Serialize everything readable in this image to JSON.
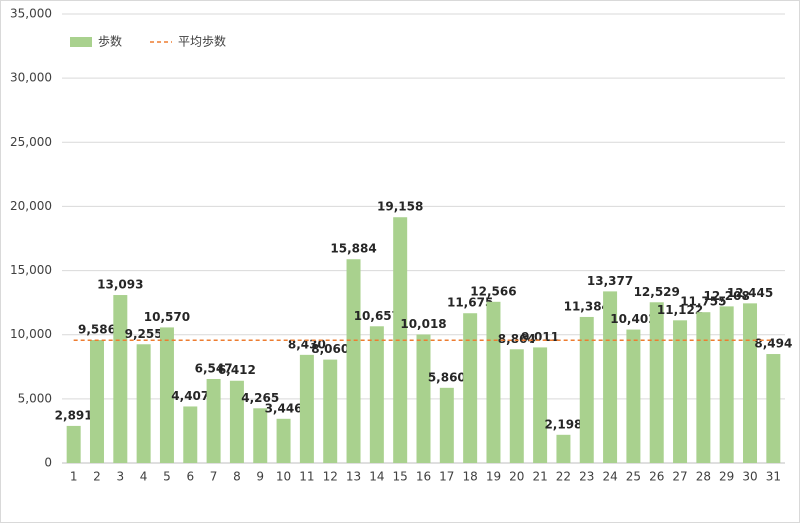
{
  "chart_data": {
    "type": "bar",
    "categories": [
      "1",
      "2",
      "3",
      "4",
      "5",
      "6",
      "7",
      "8",
      "9",
      "10",
      "11",
      "12",
      "13",
      "14",
      "15",
      "16",
      "17",
      "18",
      "19",
      "20",
      "21",
      "22",
      "23",
      "24",
      "25",
      "26",
      "27",
      "28",
      "29",
      "30",
      "31"
    ],
    "series": [
      {
        "name": "歩数",
        "color": "#a9d18e",
        "values": [
          2891,
          9586,
          13093,
          9255,
          10570,
          4407,
          6547,
          6412,
          4265,
          3446,
          8430,
          8060,
          15884,
          10657,
          19158,
          10018,
          5860,
          11675,
          12566,
          8864,
          9011,
          2198,
          11384,
          13377,
          10402,
          12529,
          11122,
          11755,
          12208,
          12445,
          8494
        ],
        "value_labels": [
          "2,891",
          "9,586",
          "13,093",
          "9,255",
          "10,570",
          "4,407",
          "6,547",
          "6,412",
          "4,265",
          "3,446",
          "8,430",
          "8,060",
          "15,884",
          "10,657",
          "19,158",
          "10,018",
          "5,860",
          "11,675",
          "12,566",
          "8,864",
          "9,011",
          "2,198",
          "11,384",
          "13,377",
          "10,402",
          "12,529",
          "11,122",
          "11,755",
          "12,208",
          "12,445",
          "8,494"
        ]
      },
      {
        "name": "平均歩数",
        "color": "#ed7d31",
        "type": "line",
        "dashed": true,
        "values": [
          9567,
          9567,
          9567,
          9567,
          9567,
          9567,
          9567,
          9567,
          9567,
          9567,
          9567,
          9567,
          9567,
          9567,
          9567,
          9567,
          9567,
          9567,
          9567,
          9567,
          9567,
          9567,
          9567,
          9567,
          9567,
          9567,
          9567,
          9567,
          9567,
          9567,
          9567
        ]
      }
    ],
    "ylim": [
      0,
      35000
    ],
    "yticks": [
      0,
      {
        "value": 5000,
        "label": "5,000"
      },
      {
        "value": 10000,
        "label": "10,000"
      },
      {
        "value": 15000,
        "label": "15,000"
      },
      {
        "value": 20000,
        "label": "20,000"
      },
      {
        "value": 25000,
        "label": "25,000"
      },
      {
        "value": 30000,
        "label": "30,000"
      },
      {
        "value": 35000,
        "label": "35,000"
      }
    ],
    "grid": true,
    "legend": "top-left"
  }
}
